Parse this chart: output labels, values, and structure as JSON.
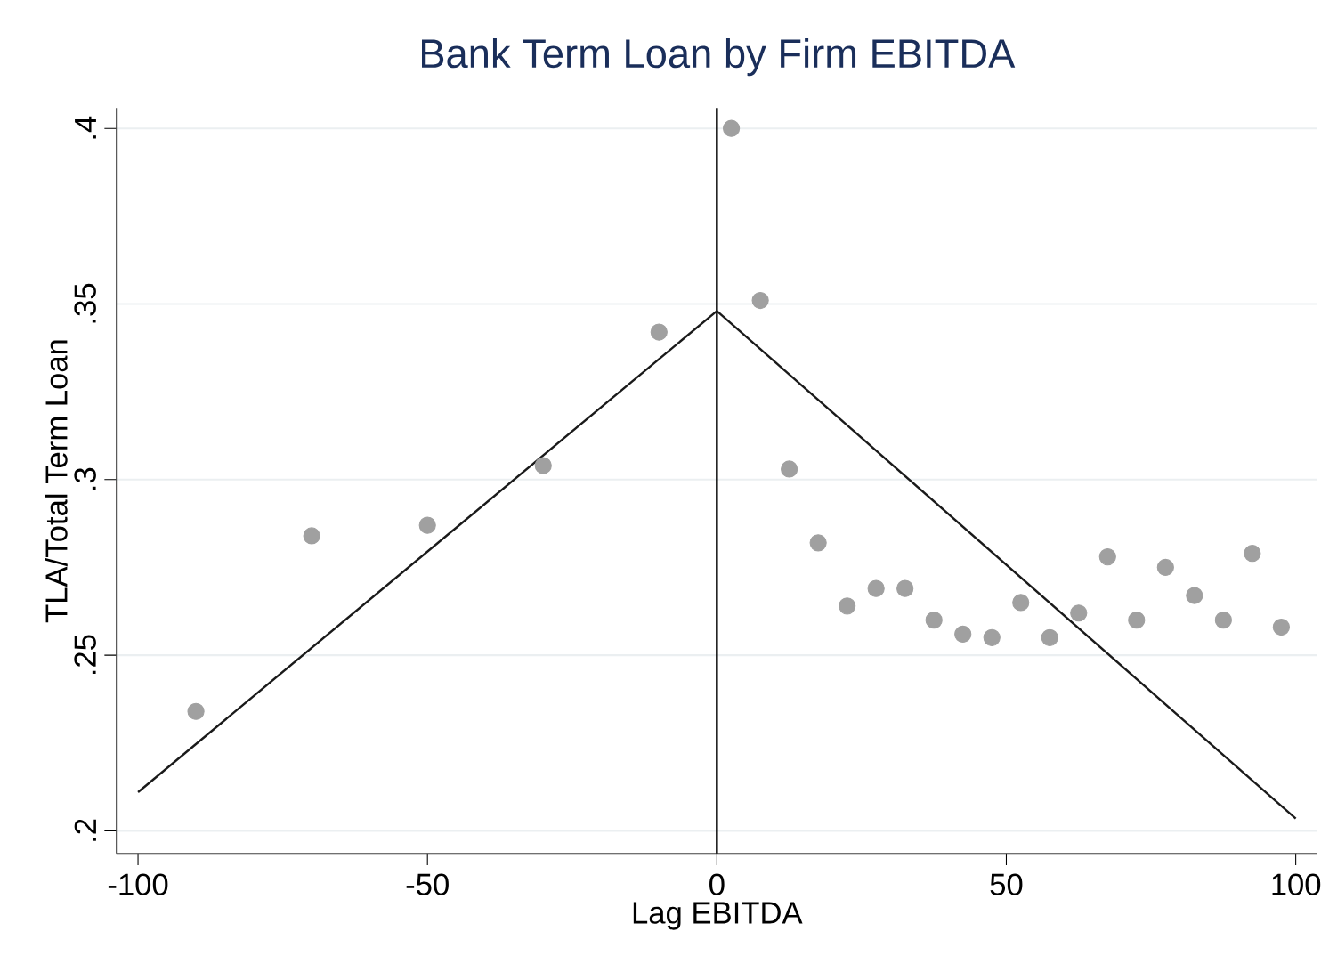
{
  "chart_data": {
    "type": "scatter",
    "title": "Bank Term Loan by Firm EBITDA",
    "xlabel": "Lag EBITDA",
    "ylabel": "TLA/Total Term Loan",
    "xlim": [
      -103.75,
      103.75
    ],
    "ylim": [
      0.1936,
      0.4058
    ],
    "xticks": [
      -100,
      -50,
      0,
      50,
      100
    ],
    "yticks": [
      {
        "value": 0.2,
        "label": ".2"
      },
      {
        "value": 0.25,
        "label": ".25"
      },
      {
        "value": 0.3,
        "label": ".3"
      },
      {
        "value": 0.35,
        "label": ".35"
      },
      {
        "value": 0.4,
        "label": ".4"
      }
    ],
    "grid": "y",
    "ref_lines": [
      {
        "axis": "x",
        "value": 0,
        "color": "#000000"
      }
    ],
    "series": [
      {
        "marker": "circle",
        "color": "#a0a0a0",
        "x": [
          -90,
          -70,
          -50,
          -30,
          -10,
          2.5,
          7.5,
          12.5,
          17.5,
          22.5,
          27.5,
          32.5,
          37.5,
          42.5,
          47.5,
          52.5,
          57.5,
          62.5,
          67.5,
          72.5,
          77.5,
          82.5,
          87.5,
          92.5,
          97.5
        ],
        "values": [
          0.234,
          0.284,
          0.287,
          0.304,
          0.342,
          0.4,
          0.351,
          0.303,
          0.282,
          0.264,
          0.269,
          0.269,
          0.26,
          0.256,
          0.255,
          0.265,
          0.255,
          0.262,
          0.278,
          0.26,
          0.275,
          0.267,
          0.26,
          0.279,
          0.258
        ]
      },
      {
        "type": "line",
        "marker": "none",
        "color": "#1a1a1a",
        "x": [
          -100,
          0
        ],
        "values": [
          0.211,
          0.348
        ]
      },
      {
        "type": "line",
        "marker": "none",
        "color": "#1a1a1a",
        "x": [
          0,
          100
        ],
        "values": [
          0.348,
          0.2035
        ]
      }
    ]
  }
}
